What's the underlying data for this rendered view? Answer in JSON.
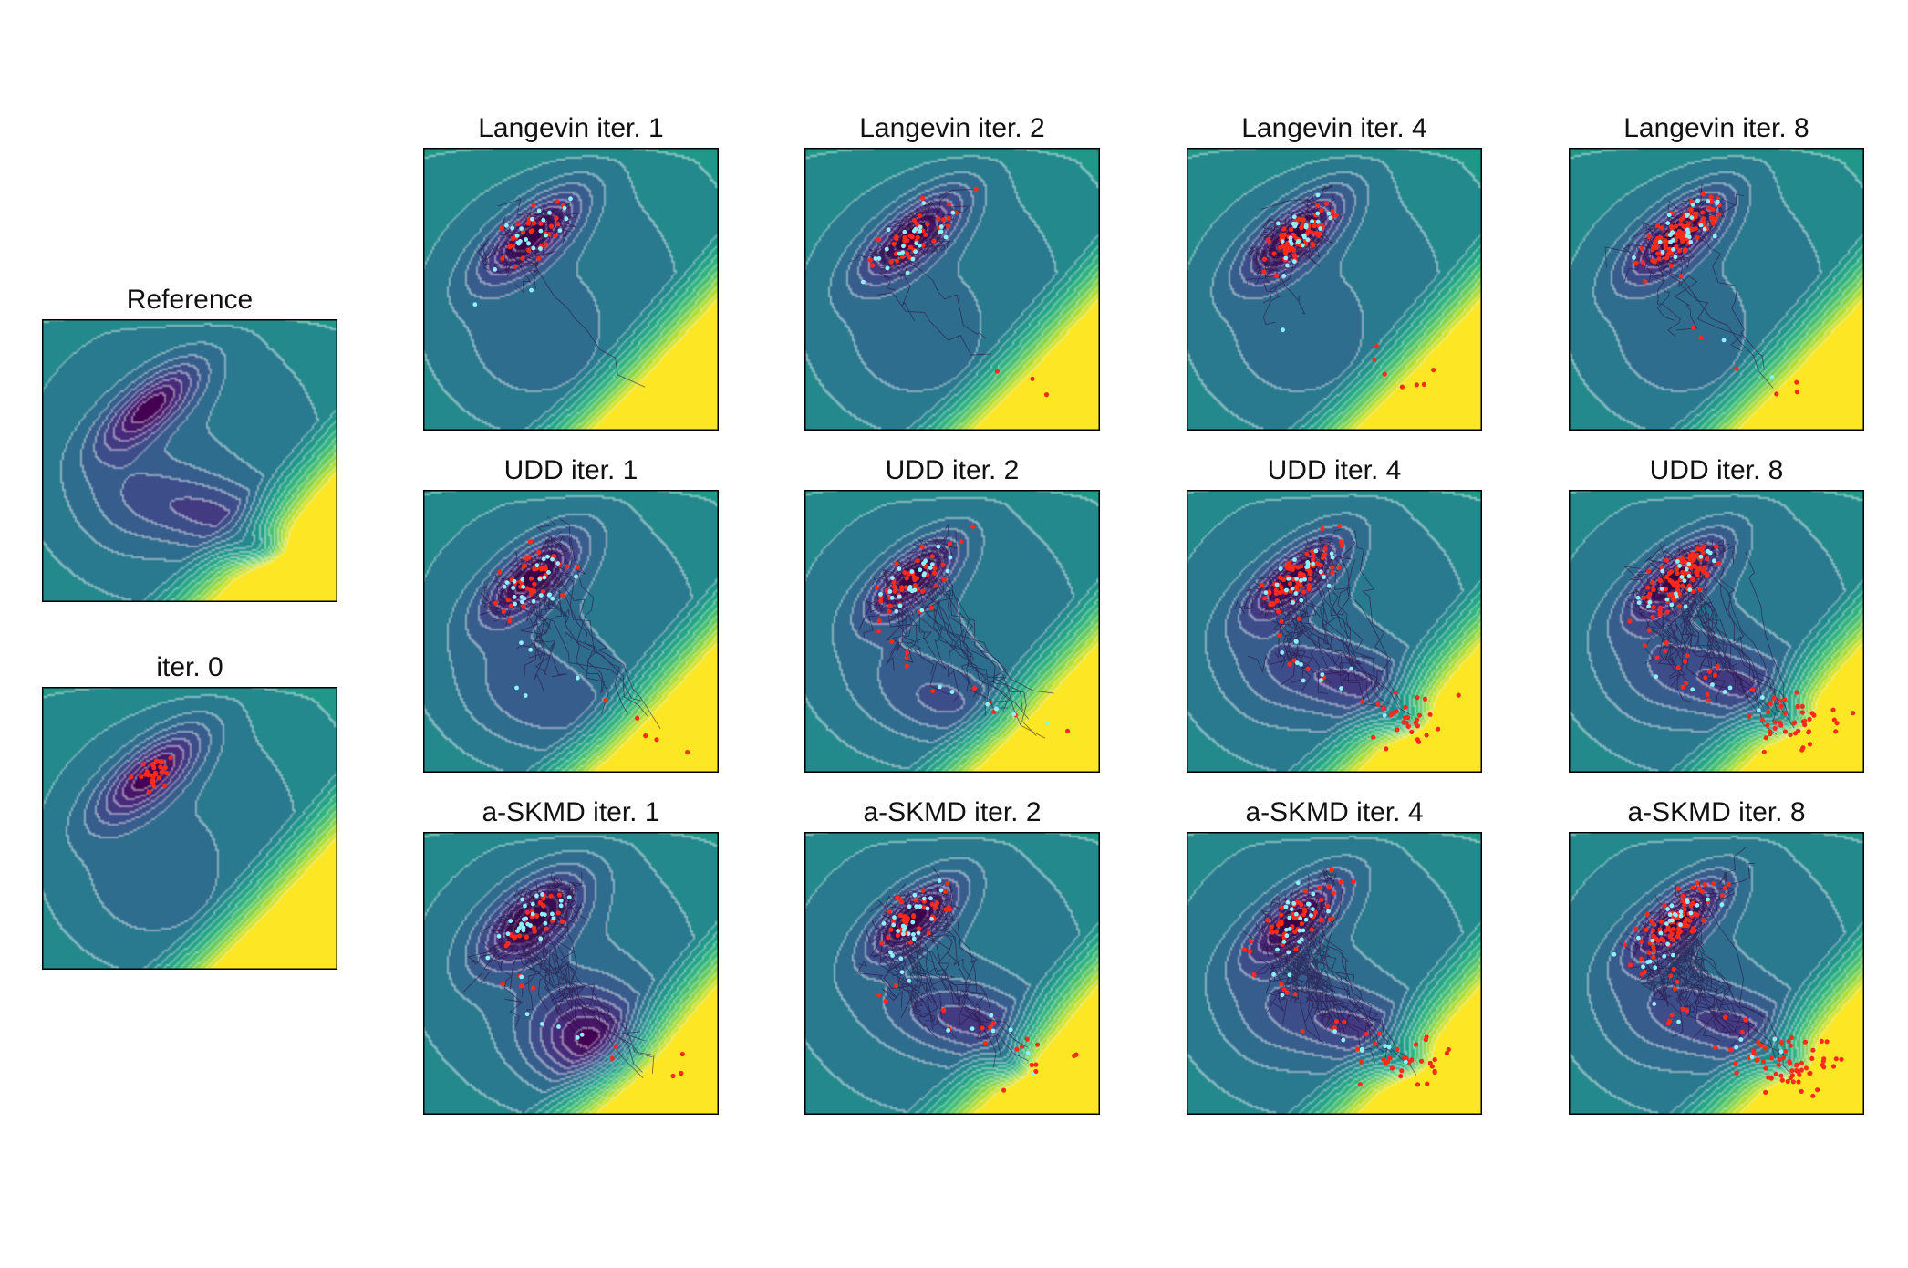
{
  "figure": {
    "colors": {
      "sample_start": "#ff2a1a",
      "sample_end": "#8ff0ff",
      "trajectory": "#2b0a3d",
      "contour_line": "#ffffff",
      "frame": "#000000",
      "colormap": [
        "#440154",
        "#482878",
        "#3e4989",
        "#31688e",
        "#26828e",
        "#1f9e89",
        "#35b779",
        "#6ece58",
        "#b5de2b",
        "#fde725"
      ]
    }
  },
  "chart_data": [
    {
      "id": "reference",
      "type": "contour",
      "title": "Reference",
      "density": "target",
      "samples": 0,
      "trajectories": 0,
      "spread": 0,
      "end_markers": 0
    },
    {
      "id": "iter0",
      "type": "contour+scatter",
      "title": "iter. 0",
      "density": "init",
      "samples": 30,
      "trajectories": 0,
      "spread": 0.0,
      "end_markers": 0
    },
    {
      "id": "langevin1",
      "type": "contour+scatter",
      "title": "Langevin iter. 1",
      "density": "init",
      "samples": 30,
      "trajectories": 30,
      "spread": 0.05,
      "end_markers": 25
    },
    {
      "id": "langevin2",
      "type": "contour+scatter",
      "title": "Langevin iter. 2",
      "density": "init",
      "samples": 45,
      "trajectories": 40,
      "spread": 0.08,
      "end_markers": 25
    },
    {
      "id": "langevin4",
      "type": "contour+scatter",
      "title": "Langevin iter. 4",
      "density": "init",
      "samples": 75,
      "trajectories": 45,
      "spread": 0.1,
      "end_markers": 30
    },
    {
      "id": "langevin8",
      "type": "contour+scatter",
      "title": "Langevin iter. 8",
      "density": "init",
      "samples": 110,
      "trajectories": 45,
      "spread": 0.12,
      "end_markers": 30
    },
    {
      "id": "udd1",
      "type": "contour+scatter",
      "title": "UDD iter. 1",
      "density": "udd1",
      "samples": 45,
      "trajectories": 50,
      "spread": 0.25,
      "end_markers": 30
    },
    {
      "id": "udd2",
      "type": "contour+scatter",
      "title": "UDD iter. 2",
      "density": "udd2",
      "samples": 55,
      "trajectories": 50,
      "spread": 0.3,
      "end_markers": 30
    },
    {
      "id": "udd4",
      "type": "contour+scatter",
      "title": "UDD iter. 4",
      "density": "target",
      "samples": 110,
      "trajectories": 60,
      "spread": 0.45,
      "end_markers": 35
    },
    {
      "id": "udd8",
      "type": "contour+scatter",
      "title": "UDD iter. 8",
      "density": "target",
      "samples": 160,
      "trajectories": 60,
      "spread": 0.55,
      "end_markers": 30
    },
    {
      "id": "askmd1",
      "type": "contour+scatter",
      "title": "a-SKMD iter. 1",
      "density": "askmd1",
      "samples": 35,
      "trajectories": 90,
      "spread": 0.3,
      "end_markers": 35
    },
    {
      "id": "askmd2",
      "type": "contour+scatter",
      "title": "a-SKMD iter. 2",
      "density": "askmd2",
      "samples": 60,
      "trajectories": 70,
      "spread": 0.5,
      "end_markers": 35
    },
    {
      "id": "askmd4",
      "type": "contour+scatter",
      "title": "a-SKMD iter. 4",
      "density": "target",
      "samples": 90,
      "trajectories": 70,
      "spread": 0.6,
      "end_markers": 35
    },
    {
      "id": "askmd8",
      "type": "contour+scatter",
      "title": "a-SKMD iter. 8",
      "density": "target",
      "samples": 160,
      "trajectories": 60,
      "spread": 0.7,
      "end_markers": 35
    }
  ]
}
